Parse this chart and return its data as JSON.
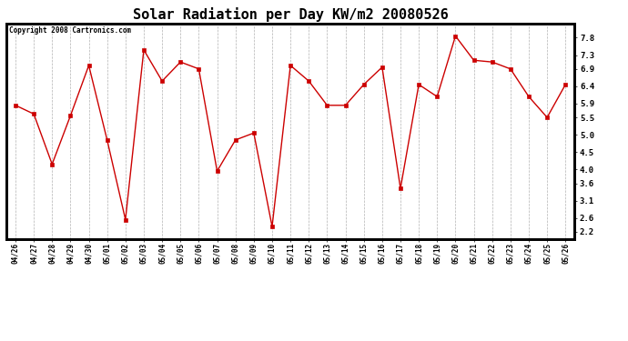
{
  "title": "Solar Radiation per Day KW/m2 20080526",
  "copyright_text": "Copyright 2008 Cartronics.com",
  "dates": [
    "04/26",
    "04/27",
    "04/28",
    "04/29",
    "04/30",
    "05/01",
    "05/02",
    "05/03",
    "05/04",
    "05/05",
    "05/06",
    "05/07",
    "05/08",
    "05/09",
    "05/10",
    "05/11",
    "05/12",
    "05/13",
    "05/14",
    "05/15",
    "05/16",
    "05/17",
    "05/18",
    "05/19",
    "05/20",
    "05/21",
    "05/22",
    "05/23",
    "05/24",
    "05/25",
    "05/26"
  ],
  "values": [
    5.85,
    5.6,
    4.15,
    5.55,
    7.0,
    4.85,
    2.55,
    7.45,
    6.55,
    7.1,
    6.9,
    3.95,
    4.85,
    5.05,
    2.35,
    7.0,
    6.55,
    5.85,
    5.85,
    6.45,
    6.95,
    3.45,
    6.45,
    6.1,
    7.85,
    7.15,
    7.1,
    6.9,
    6.1,
    5.5,
    6.45
  ],
  "line_color": "#cc0000",
  "marker_color": "#cc0000",
  "bg_color": "#ffffff",
  "grid_color": "#aaaaaa",
  "title_fontsize": 11,
  "ylim": [
    2.0,
    8.2
  ],
  "yticks": [
    2.2,
    2.6,
    3.1,
    3.6,
    4.0,
    4.5,
    5.0,
    5.5,
    5.9,
    6.4,
    6.9,
    7.3,
    7.8
  ]
}
